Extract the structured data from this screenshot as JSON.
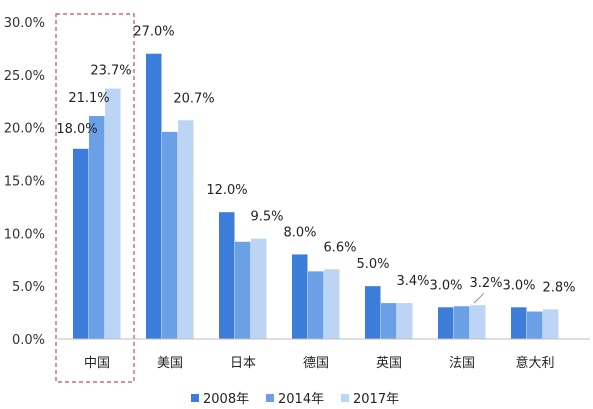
{
  "chart_data": {
    "type": "bar",
    "categories": [
      "中国",
      "美国",
      "日本",
      "德国",
      "英国",
      "法国",
      "意大利"
    ],
    "series": [
      {
        "name": "2008年",
        "color": "#3b7dd8",
        "values": [
          18.0,
          27.0,
          12.0,
          8.0,
          5.0,
          3.0,
          3.0
        ],
        "labels": [
          "18.0%",
          "27.0%",
          "12.0%",
          "8.0%",
          "5.0%",
          "3.0%",
          "3.0%"
        ]
      },
      {
        "name": "2014年",
        "color": "#6b9fe6",
        "values": [
          21.1,
          19.6,
          9.2,
          6.4,
          3.4,
          3.1,
          2.6
        ],
        "labels": [
          "21.1%",
          "",
          "",
          "",
          "",
          "",
          ""
        ]
      },
      {
        "name": "2017年",
        "color": "#bcd5f5",
        "values": [
          23.7,
          20.7,
          9.5,
          6.6,
          3.4,
          3.2,
          2.8
        ],
        "labels": [
          "23.7%",
          "20.7%",
          "9.5%",
          "6.6%",
          "3.4%",
          "3.2%",
          "2.8%"
        ]
      }
    ],
    "yticks": [
      "0.0%",
      "5.0%",
      "10.0%",
      "15.0%",
      "20.0%",
      "25.0%",
      "30.0%"
    ],
    "ylim": [
      0,
      30
    ],
    "grid": false,
    "legend_position": "bottom",
    "highlight_category": "中国",
    "title": "",
    "xlabel": "",
    "ylabel": ""
  },
  "colors": {
    "axis": "#bfbfbf",
    "highlight_border": "#c0504d",
    "text": "#222222"
  }
}
